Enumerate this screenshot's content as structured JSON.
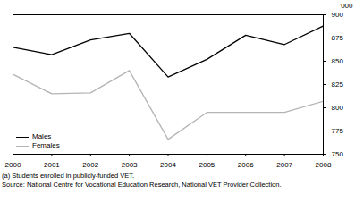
{
  "chart_data": {
    "type": "line",
    "y_label": "'000",
    "x": [
      2000,
      2001,
      2002,
      2003,
      2004,
      2005,
      2006,
      2007,
      2008
    ],
    "series": [
      {
        "name": "Males",
        "color": "#000000",
        "values": [
          865,
          857,
          873,
          880,
          833,
          852,
          878,
          868,
          888
        ]
      },
      {
        "name": "Females",
        "color": "#b4b4b4",
        "values": [
          836,
          815,
          816,
          840,
          766,
          795,
          795,
          795,
          807
        ]
      }
    ],
    "xlim": [
      2000,
      2008
    ],
    "xticks": [
      2000,
      2001,
      2002,
      2003,
      2004,
      2005,
      2006,
      2007,
      2008
    ],
    "ylim": [
      750,
      900
    ],
    "yticks": [
      750,
      775,
      800,
      825,
      850,
      875,
      900
    ],
    "grid": false,
    "legend": "bottom-left",
    "annotations": [
      "(a) Students enrolled in publicly-funded VET.",
      "Source: National Centre for Vocational Education Research, National VET Provider Collection."
    ]
  }
}
